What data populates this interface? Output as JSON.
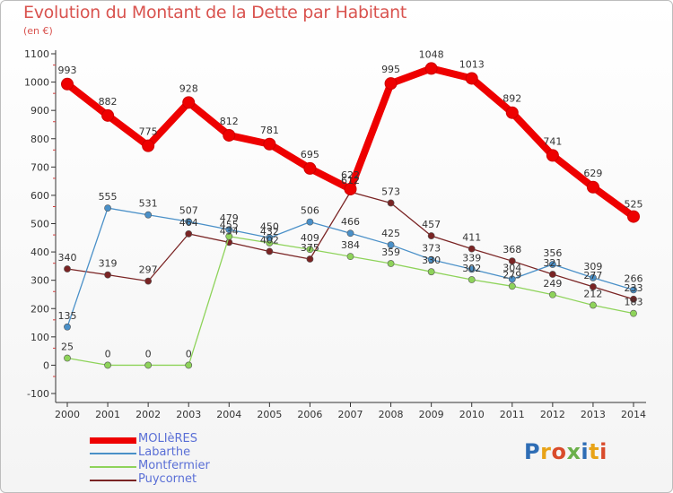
{
  "title": "Evolution du Montant de la Dette par Habitant",
  "subtitle": "(en €)",
  "logo": {
    "text": "Proxiti"
  },
  "chart_data": {
    "type": "line",
    "x": [
      "2000",
      "2001",
      "2002",
      "2003",
      "2004",
      "2005",
      "2006",
      "2007",
      "2008",
      "2009",
      "2010",
      "2011",
      "2012",
      "2013",
      "2014"
    ],
    "ylim": [
      -100,
      1100
    ],
    "yticks": [
      "-100",
      "0",
      "100",
      "200",
      "300",
      "400",
      "500",
      "600",
      "700",
      "800",
      "900",
      "1000",
      "1100"
    ],
    "grid": false,
    "legend_position": "bottom-left",
    "series": [
      {
        "name": "MOLIèRES",
        "color": "#ee0000",
        "values": [
          993,
          882,
          775,
          928,
          812,
          781,
          695,
          622,
          995,
          1048,
          1013,
          892,
          741,
          629,
          525
        ],
        "labels": [
          "993",
          "882",
          "775",
          "928",
          "812",
          "781",
          "695",
          "622",
          "995",
          "1048",
          "1013",
          "892",
          "741",
          "629",
          "525"
        ]
      },
      {
        "name": "Labarthe",
        "color": "#4a90c8",
        "values": [
          135,
          555,
          531,
          507,
          479,
          450,
          506,
          466,
          425,
          373,
          339,
          304,
          356,
          309,
          266
        ],
        "labels": [
          "135",
          "555",
          "531",
          "507",
          "479",
          "450",
          "506",
          "466",
          "425",
          "373",
          "339",
          "304",
          "356",
          "309",
          "266"
        ]
      },
      {
        "name": "Montfermier",
        "color": "#8ed35a",
        "values": [
          25,
          0,
          0,
          0,
          455,
          432,
          409,
          384,
          359,
          330,
          302,
          279,
          249,
          212,
          183
        ],
        "labels": [
          "25",
          "0",
          "0",
          "0",
          "455",
          "432",
          "409",
          "384",
          "359",
          "330",
          "302",
          "279",
          "249",
          "212",
          "183"
        ]
      },
      {
        "name": "Puycornet",
        "color": "#7a2424",
        "values": [
          340,
          319,
          297,
          464,
          434,
          402,
          375,
          612,
          573,
          457,
          411,
          368,
          321,
          277,
          233
        ],
        "labels": [
          "340",
          "319",
          "297",
          "464",
          "434",
          "402",
          "375",
          "612",
          "573",
          "457",
          "411",
          "368",
          "321",
          "277",
          "233"
        ]
      }
    ]
  }
}
